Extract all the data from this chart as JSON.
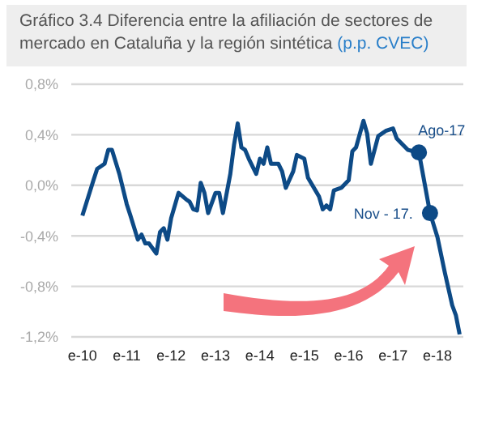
{
  "chart_data": {
    "type": "line",
    "title": "Gráfico 3.4 Diferencia entre la afiliación de sectores de mercado en Cataluña  y la región sintética",
    "subtitle": "(p.p. CVEC)",
    "x": [
      "2010-01",
      "2010-04",
      "2010-05",
      "2010-07",
      "2010-08",
      "2010-09",
      "2010-11",
      "2011-01",
      "2011-02",
      "2011-04",
      "2011-05",
      "2011-06",
      "2011-07",
      "2011-09",
      "2011-10",
      "2011-11",
      "2011-12",
      "2012-01",
      "2012-03",
      "2012-05",
      "2012-06",
      "2012-07",
      "2012-08",
      "2012-09",
      "2012-10",
      "2012-11",
      "2013-01",
      "2013-02",
      "2013-03",
      "2013-05",
      "2013-06",
      "2013-07",
      "2013-08",
      "2013-09",
      "2013-10",
      "2013-12",
      "2014-01",
      "2014-02",
      "2014-03",
      "2014-04",
      "2014-06",
      "2014-07",
      "2014-08",
      "2014-10",
      "2014-11",
      "2015-01",
      "2015-02",
      "2015-05",
      "2015-06",
      "2015-07",
      "2015-08",
      "2015-09",
      "2015-11",
      "2016-01",
      "2016-02",
      "2016-03",
      "2016-05",
      "2016-06",
      "2016-07",
      "2016-09",
      "2016-10",
      "2016-11",
      "2017-01",
      "2017-02",
      "2017-03",
      "2017-05",
      "2017-08",
      "2017-11",
      "2018-01",
      "2018-03",
      "2018-05",
      "2018-06",
      "2018-07"
    ],
    "series": [
      {
        "color": "#0d4a86",
        "values": [
          -0.24,
          0.04,
          0.13,
          0.17,
          0.28,
          0.28,
          0.09,
          -0.15,
          -0.24,
          -0.43,
          -0.39,
          -0.46,
          -0.46,
          -0.54,
          -0.37,
          -0.34,
          -0.43,
          -0.26,
          -0.06,
          -0.11,
          -0.13,
          -0.19,
          -0.2,
          0.02,
          -0.06,
          -0.22,
          -0.06,
          -0.06,
          -0.22,
          0.09,
          0.32,
          0.49,
          0.3,
          0.28,
          0.21,
          0.09,
          0.21,
          0.17,
          0.3,
          0.17,
          0.17,
          0.11,
          -0.02,
          0.11,
          0.24,
          0.21,
          0.06,
          -0.09,
          -0.19,
          -0.16,
          -0.19,
          -0.04,
          -0.02,
          0.04,
          0.27,
          0.3,
          0.51,
          0.41,
          0.17,
          0.39,
          0.41,
          0.43,
          0.45,
          0.37,
          0.34,
          0.28,
          0.26,
          -0.22,
          -0.41,
          -0.69,
          -0.95,
          -1.03,
          -1.18
        ]
      }
    ],
    "xlim": [
      "2009-10",
      "2018-08"
    ],
    "xticks": [
      {
        "value": "2010-01",
        "label": "e-10"
      },
      {
        "value": "2011-01",
        "label": "e-11"
      },
      {
        "value": "2012-01",
        "label": "e-12"
      },
      {
        "value": "2013-01",
        "label": "e-13"
      },
      {
        "value": "2014-01",
        "label": "e-14"
      },
      {
        "value": "2015-01",
        "label": "e-15"
      },
      {
        "value": "2016-01",
        "label": "e-16"
      },
      {
        "value": "2017-01",
        "label": "e-17"
      },
      {
        "value": "2018-01",
        "label": "e-18"
      }
    ],
    "ylim": [
      -1.2,
      0.8
    ],
    "yticks": [
      {
        "value": -1.2,
        "label": "-1,2%"
      },
      {
        "value": -0.8,
        "label": "-0,8%"
      },
      {
        "value": -0.4,
        "label": "-0,4%"
      },
      {
        "value": 0,
        "label": "0,0%"
      },
      {
        "value": 0.4,
        "label": "0,4%"
      },
      {
        "value": 0.8,
        "label": "0,8%"
      }
    ],
    "grid": "y",
    "annotations": [
      {
        "text": "Ago-17",
        "x": "2017-08",
        "y": 0.26
      },
      {
        "text": "Nov - 17.",
        "x": "2017-11",
        "y": -0.22
      }
    ]
  }
}
